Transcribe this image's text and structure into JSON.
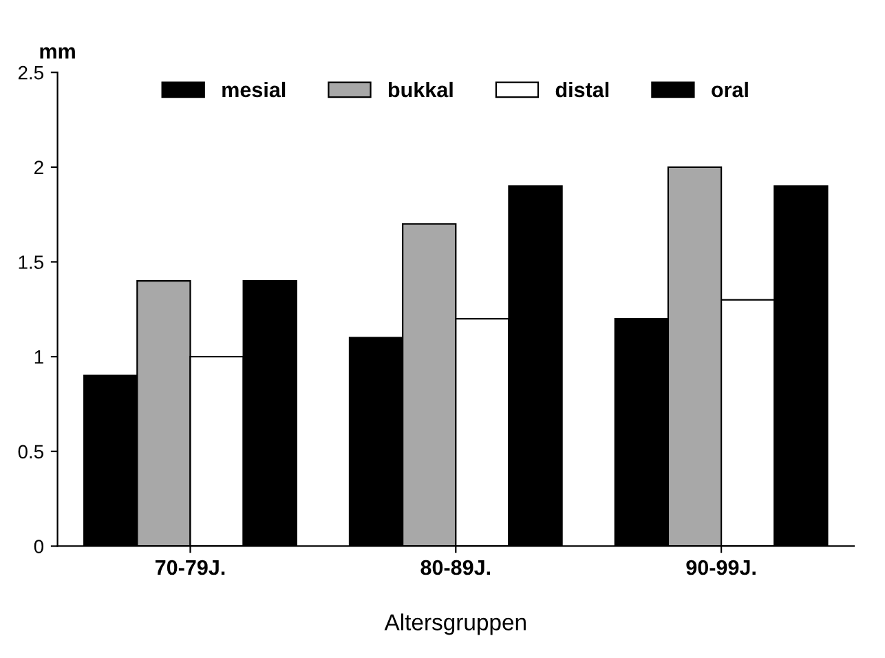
{
  "chart_data": {
    "type": "bar",
    "ylabel": "mm",
    "xlabel": "Altersgruppen",
    "categories": [
      "70-79J.",
      "80-89J.",
      "90-99J."
    ],
    "series": [
      {
        "name": "mesial",
        "color": "#000000",
        "values": [
          0.9,
          1.1,
          1.2
        ]
      },
      {
        "name": "bukkal",
        "color": "#a8a8a8",
        "values": [
          1.4,
          1.7,
          2.0
        ]
      },
      {
        "name": "distal",
        "color": "#ffffff",
        "values": [
          1.0,
          1.2,
          1.3
        ]
      },
      {
        "name": "oral",
        "color": "#000000",
        "values": [
          1.4,
          1.9,
          1.9
        ]
      }
    ],
    "ylim": [
      0,
      2.5
    ],
    "yticks": [
      0,
      0.5,
      1,
      1.5,
      2,
      2.5
    ],
    "grid": false,
    "legend": "top"
  }
}
